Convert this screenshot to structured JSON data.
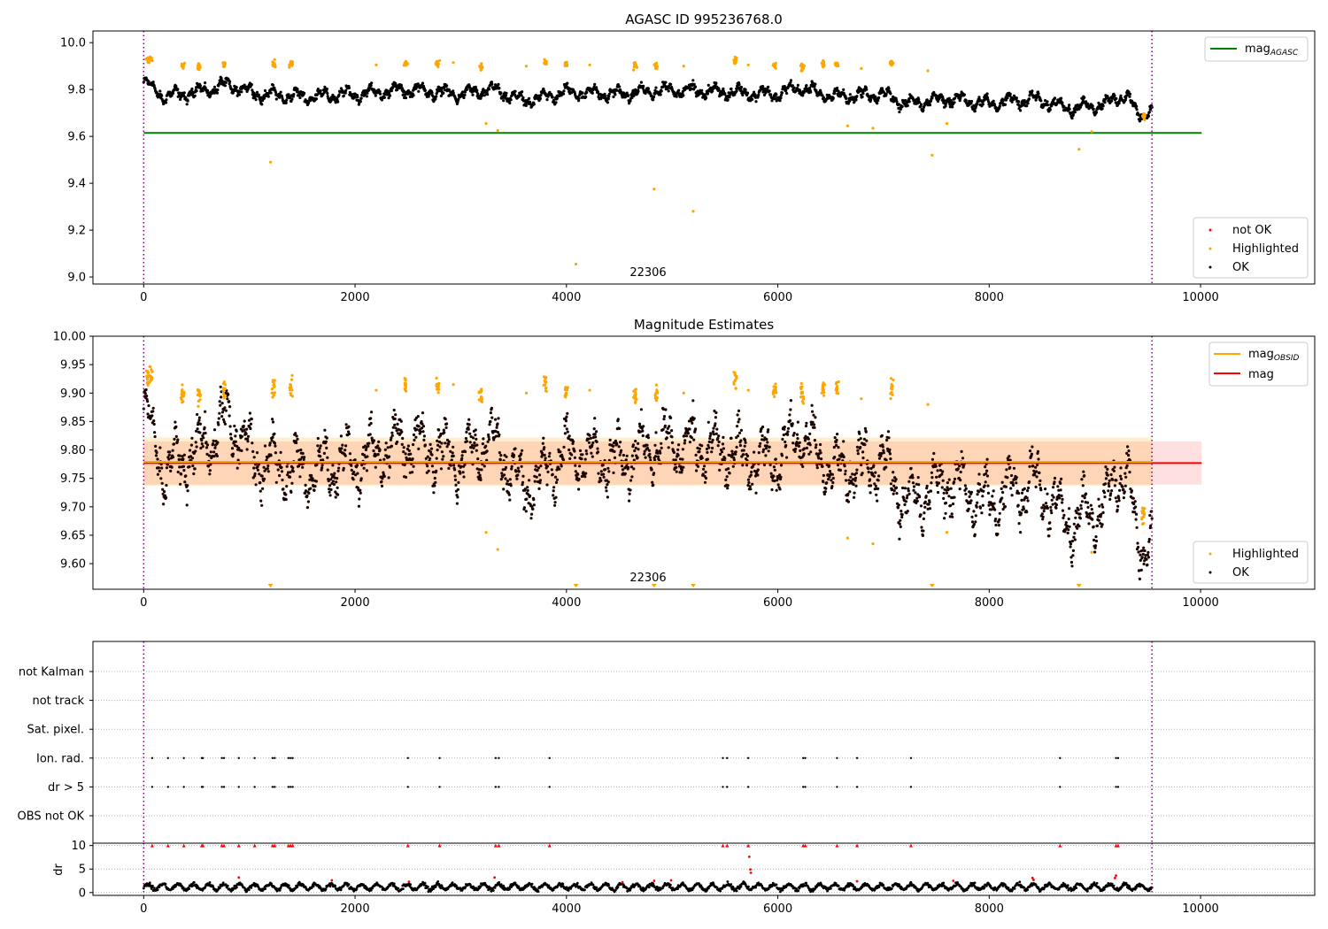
{
  "chart_data": [
    {
      "type": "scatter",
      "title": "AGASC ID 995236768.0",
      "xlim": [
        -480,
        11080
      ],
      "ylim": [
        8.97,
        10.05
      ],
      "xticks": [
        0,
        2000,
        4000,
        6000,
        8000,
        10000
      ],
      "yticks": [
        9.0,
        9.2,
        9.4,
        9.6,
        9.8,
        10.0
      ],
      "ytick_labels": [
        "9.0",
        "9.2",
        "9.4",
        "9.6",
        "9.8",
        "10.0"
      ],
      "obsid_label": {
        "text": "22306",
        "x": 4760,
        "y": 9.0
      },
      "obs_bounds": [
        0,
        9540
      ],
      "mag_agasc": {
        "value": 9.615,
        "x_range": [
          0,
          10010
        ]
      },
      "trend": [
        [
          0,
          9.83
        ],
        [
          200,
          9.77
        ],
        [
          500,
          9.79
        ],
        [
          800,
          9.82
        ],
        [
          1100,
          9.78
        ],
        [
          1500,
          9.77
        ],
        [
          2000,
          9.78
        ],
        [
          2500,
          9.8
        ],
        [
          3000,
          9.78
        ],
        [
          3300,
          9.8
        ],
        [
          3600,
          9.75
        ],
        [
          4000,
          9.79
        ],
        [
          4500,
          9.78
        ],
        [
          5000,
          9.8
        ],
        [
          5500,
          9.79
        ],
        [
          6000,
          9.78
        ],
        [
          6200,
          9.81
        ],
        [
          6500,
          9.77
        ],
        [
          7000,
          9.78
        ],
        [
          7200,
          9.74
        ],
        [
          7600,
          9.76
        ],
        [
          8000,
          9.74
        ],
        [
          8400,
          9.76
        ],
        [
          8800,
          9.72
        ],
        [
          9100,
          9.74
        ],
        [
          9300,
          9.78
        ],
        [
          9400,
          9.69
        ],
        [
          9540,
          9.72
        ]
      ],
      "spread": 0.028,
      "highlight_clusters": [
        [
          40,
          9.925
        ],
        [
          70,
          9.93
        ],
        [
          370,
          9.9
        ],
        [
          520,
          9.895
        ],
        [
          760,
          9.905
        ],
        [
          1230,
          9.91
        ],
        [
          1390,
          9.91
        ],
        [
          2480,
          9.915
        ],
        [
          2780,
          9.91
        ],
        [
          3190,
          9.895
        ],
        [
          3800,
          9.915
        ],
        [
          4000,
          9.905
        ],
        [
          4650,
          9.9
        ],
        [
          4850,
          9.9
        ],
        [
          5600,
          9.925
        ],
        [
          5970,
          9.905
        ],
        [
          6230,
          9.895
        ],
        [
          6430,
          9.91
        ],
        [
          6560,
          9.905
        ],
        [
          7080,
          9.91
        ],
        [
          9460,
          9.685
        ]
      ],
      "highlight_outliers": [
        [
          1200,
          9.49
        ],
        [
          3240,
          9.655
        ],
        [
          3350,
          9.625
        ],
        [
          4090,
          9.055
        ],
        [
          4830,
          9.375
        ],
        [
          5200,
          9.28
        ],
        [
          6660,
          9.645
        ],
        [
          6900,
          9.635
        ],
        [
          7460,
          9.52
        ],
        [
          7600,
          9.655
        ],
        [
          8850,
          9.545
        ],
        [
          8970,
          9.62
        ],
        [
          2200,
          9.905
        ],
        [
          2930,
          9.915
        ],
        [
          3620,
          9.9
        ],
        [
          4220,
          9.905
        ],
        [
          5110,
          9.9
        ],
        [
          5720,
          9.905
        ],
        [
          7420,
          9.88
        ],
        [
          6790,
          9.89
        ]
      ],
      "legend_upper": [
        {
          "label": "mag",
          "sub": "AGASC",
          "color": "#008000"
        }
      ],
      "legend_lower": [
        {
          "label": "not OK",
          "color": "#ff0000"
        },
        {
          "label": "Highlighted",
          "color": "#ffa500"
        },
        {
          "label": "OK",
          "color": "#000000"
        }
      ]
    },
    {
      "type": "scatter",
      "title": "Magnitude Estimates",
      "xlim": [
        -480,
        11080
      ],
      "ylim": [
        9.555,
        10.0
      ],
      "xticks": [
        0,
        2000,
        4000,
        6000,
        8000,
        10000
      ],
      "yticks": [
        9.6,
        9.65,
        9.7,
        9.75,
        9.8,
        9.85,
        9.9,
        9.95,
        10.0
      ],
      "ytick_labels": [
        "9.60",
        "9.65",
        "9.70",
        "9.75",
        "9.80",
        "9.85",
        "9.90",
        "9.95",
        "10.00"
      ],
      "obsid_label": {
        "text": "22306",
        "x": 4760,
        "y": 9.572
      },
      "obs_bounds": [
        0,
        9540
      ],
      "mag": {
        "value": 9.777,
        "band": [
          9.739,
          9.815
        ],
        "x_range": [
          0,
          10010
        ]
      },
      "mag_obsid": {
        "value": 9.779,
        "band": [
          9.737,
          9.822
        ],
        "x_range": [
          0,
          9540
        ]
      },
      "off_scale_markers_x": [
        1200,
        4090,
        4830,
        5200,
        7460,
        8850
      ],
      "legend_upper": [
        {
          "label": "mag",
          "sub": "OBSID",
          "color": "#ffa500"
        },
        {
          "label": "mag",
          "sub": "",
          "color": "#ff0000"
        }
      ],
      "legend_lower": [
        {
          "label": "Highlighted",
          "color": "#ffa500"
        },
        {
          "label": "OK",
          "color": "#000000"
        }
      ]
    },
    {
      "type": "scatter",
      "xlim": [
        -480,
        11080
      ],
      "flag_categories": [
        "not Kalman",
        "not track",
        "Sat. pixel.",
        "Ion. rad.",
        "dr > 5",
        "OBS not OK"
      ],
      "flag_events_x": [
        80,
        230,
        380,
        550,
        560,
        740,
        760,
        900,
        1050,
        1220,
        1240,
        1370,
        1390,
        1410,
        2500,
        2800,
        3330,
        3360,
        3840,
        5480,
        5520,
        5720,
        6240,
        6260,
        6560,
        6750,
        7260,
        8670,
        9200,
        9220
      ],
      "obs_bounds": [
        0,
        9540
      ]
    },
    {
      "type": "scatter",
      "ylabel": "dr",
      "xlim": [
        -480,
        11080
      ],
      "ylim": [
        -0.6,
        10.5
      ],
      "xticks": [
        0,
        2000,
        4000,
        6000,
        8000,
        10000
      ],
      "yticks": [
        0,
        5,
        10
      ],
      "ytick_labels": [
        "0",
        "5",
        "10"
      ],
      "clip_value": 10,
      "red_points": [
        [
          900,
          3.2
        ],
        [
          1780,
          2.6
        ],
        [
          2510,
          2.3
        ],
        [
          3320,
          3.2
        ],
        [
          4530,
          2.2
        ],
        [
          4830,
          2.5
        ],
        [
          4990,
          2.6
        ],
        [
          5730,
          7.6
        ],
        [
          5740,
          4.9
        ],
        [
          5745,
          4.2
        ],
        [
          6750,
          2.4
        ],
        [
          7660,
          2.5
        ],
        [
          8410,
          3.1
        ],
        [
          8420,
          2.7
        ],
        [
          9190,
          3.1
        ],
        [
          9200,
          3.6
        ]
      ],
      "obs_bounds": [
        0,
        9540
      ]
    }
  ]
}
